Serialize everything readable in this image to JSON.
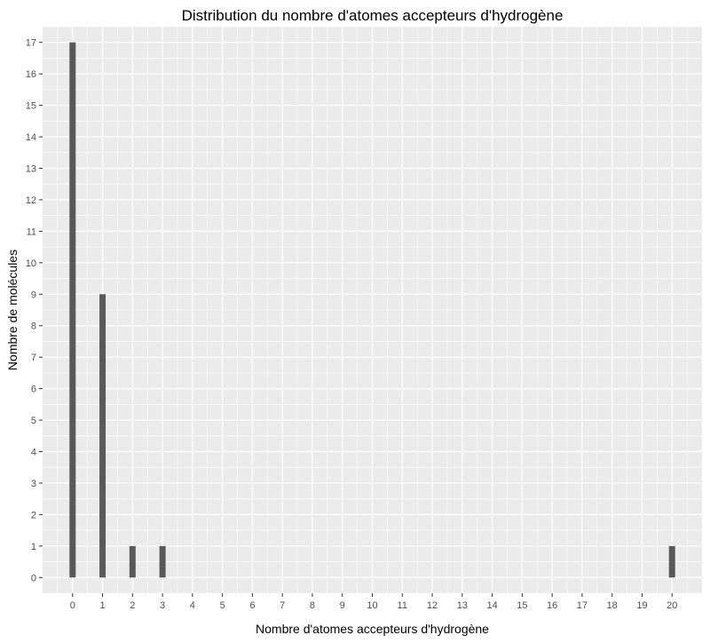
{
  "chart_data": {
    "type": "bar",
    "title": "Distribution du nombre d'atomes accepteurs d'hydrogène",
    "xlabel": "Nombre d'atomes accepteurs d'hydrogène",
    "ylabel": "Nombre de molécules",
    "x_ticks": [
      "0",
      "1",
      "2",
      "3",
      "4",
      "5",
      "6",
      "7",
      "8",
      "9",
      "10",
      "11",
      "12",
      "13",
      "14",
      "15",
      "16",
      "17",
      "18",
      "19",
      "20"
    ],
    "y_ticks": [
      "0",
      "1",
      "2",
      "3",
      "4",
      "5",
      "6",
      "7",
      "8",
      "9",
      "10",
      "11",
      "12",
      "13",
      "14",
      "15",
      "16",
      "17"
    ],
    "xlim": [
      -1,
      21
    ],
    "ylim": [
      -0.5,
      17.5
    ],
    "grid": true,
    "series": [
      {
        "x": [
          0,
          1,
          2,
          3,
          20
        ],
        "values": [
          17,
          9,
          1,
          1,
          1
        ]
      }
    ],
    "colors": {
      "bar": "#595959",
      "panel": "#ebebeb",
      "grid": "#ffffff",
      "tick": "#4d4d4d"
    }
  }
}
